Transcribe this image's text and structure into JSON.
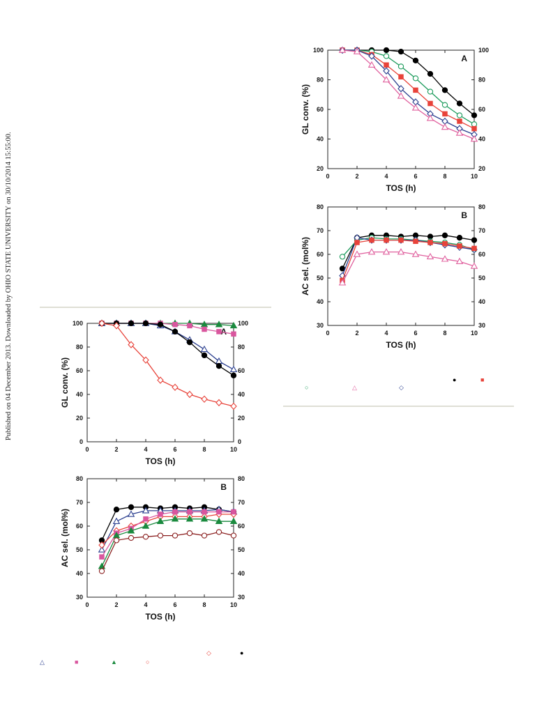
{
  "page": {
    "publisher_note": "Published on 04 December 2013. Downloaded by OHIO STATE UNIVERSITY on 30/10/2014 15:55:00."
  },
  "left_legend": [
    {
      "symbol": "◇",
      "color": "#e8433a"
    },
    {
      "symbol": "●",
      "color": "#000000"
    },
    {
      "symbol": "△",
      "color": "#2b3f8f"
    },
    {
      "symbol": "■",
      "color": "#d9569e"
    },
    {
      "symbol": "▲",
      "color": "#1a8a3e"
    },
    {
      "symbol": "○",
      "color": "#e8433a"
    }
  ],
  "right_legend": [
    {
      "symbol": "●",
      "color": "#000000"
    },
    {
      "symbol": "■",
      "color": "#e8433a"
    },
    {
      "symbol": "○",
      "color": "#1a9a5a"
    },
    {
      "symbol": "△",
      "color": "#e0609e"
    },
    {
      "symbol": "◇",
      "color": "#2b3f8f"
    }
  ],
  "chart_data": [
    {
      "id": "right-A",
      "type": "line",
      "panel_label": "A",
      "xlabel": "TOS (h)",
      "ylabel": "GL conv. (%)",
      "xlim": [
        0,
        10
      ],
      "ylim": [
        20,
        100
      ],
      "xticks": [
        0,
        2,
        4,
        6,
        8,
        10
      ],
      "yticks": [
        20,
        40,
        60,
        80,
        100
      ],
      "grid": false,
      "series": [
        {
          "marker": "circle",
          "filled": true,
          "color": "#000000",
          "x": [
            1,
            2,
            3,
            4,
            5,
            6,
            7,
            8,
            9,
            10
          ],
          "y": [
            100,
            100,
            100,
            100,
            99,
            93,
            84,
            73,
            64,
            56
          ]
        },
        {
          "marker": "circle",
          "filled": false,
          "color": "#1a9a5a",
          "x": [
            1,
            2,
            3,
            4,
            5,
            6,
            7,
            8,
            9,
            10
          ],
          "y": [
            100,
            100,
            99,
            96,
            89,
            81,
            72,
            63,
            56,
            50
          ]
        },
        {
          "marker": "square",
          "filled": true,
          "color": "#e8433a",
          "x": [
            1,
            2,
            3,
            4,
            5,
            6,
            7,
            8,
            9,
            10
          ],
          "y": [
            100,
            100,
            97,
            90,
            82,
            73,
            64,
            57,
            52,
            47
          ]
        },
        {
          "marker": "diamond",
          "filled": false,
          "color": "#2b3f8f",
          "x": [
            1,
            2,
            3,
            4,
            5,
            6,
            7,
            8,
            9,
            10
          ],
          "y": [
            100,
            100,
            96,
            86,
            74,
            65,
            57,
            52,
            47,
            43
          ]
        },
        {
          "marker": "triangle",
          "filled": false,
          "color": "#e0609e",
          "x": [
            1,
            2,
            3,
            4,
            5,
            6,
            7,
            8,
            9,
            10
          ],
          "y": [
            100,
            99,
            90,
            80,
            69,
            61,
            54,
            48,
            44,
            40
          ]
        }
      ]
    },
    {
      "id": "right-B",
      "type": "line",
      "panel_label": "B",
      "xlabel": "TOS (h)",
      "ylabel": "AC sel. (mol%)",
      "xlim": [
        0,
        10
      ],
      "ylim": [
        30,
        80
      ],
      "xticks": [
        0,
        2,
        4,
        6,
        8,
        10
      ],
      "yticks": [
        30,
        40,
        50,
        60,
        70,
        80
      ],
      "grid": false,
      "series": [
        {
          "marker": "circle",
          "filled": true,
          "color": "#000000",
          "x": [
            1,
            2,
            3,
            4,
            5,
            6,
            7,
            8,
            9,
            10
          ],
          "y": [
            54,
            67,
            68,
            68,
            67.5,
            68,
            67.5,
            68,
            67,
            66
          ]
        },
        {
          "marker": "circle",
          "filled": false,
          "color": "#1a9a5a",
          "x": [
            1,
            2,
            3,
            4,
            5,
            6,
            7,
            8,
            9,
            10
          ],
          "y": [
            59,
            66,
            67,
            66.5,
            66.5,
            66,
            65.5,
            65,
            64,
            62
          ]
        },
        {
          "marker": "diamond",
          "filled": false,
          "color": "#2b3f8f",
          "x": [
            1,
            2,
            3,
            4,
            5,
            6,
            7,
            8,
            9,
            10
          ],
          "y": [
            51,
            67,
            66,
            66,
            66,
            66,
            65,
            64,
            63,
            62
          ]
        },
        {
          "marker": "square",
          "filled": true,
          "color": "#e8433a",
          "x": [
            1,
            2,
            3,
            4,
            5,
            6,
            7,
            8,
            9,
            10
          ],
          "y": [
            49,
            65,
            66,
            66,
            66,
            65.5,
            65,
            64.5,
            63.5,
            62.5
          ]
        },
        {
          "marker": "triangle",
          "filled": false,
          "color": "#e0609e",
          "x": [
            1,
            2,
            3,
            4,
            5,
            6,
            7,
            8,
            9,
            10
          ],
          "y": [
            48,
            60,
            61,
            61,
            61,
            60,
            59,
            58,
            57,
            55
          ]
        }
      ]
    },
    {
      "id": "left-A",
      "type": "line",
      "panel_label": "A",
      "xlabel": "TOS (h)",
      "ylabel": "GL conv. (%)",
      "xlim": [
        0,
        10
      ],
      "ylim": [
        0,
        100
      ],
      "xticks": [
        0,
        2,
        4,
        6,
        8,
        10
      ],
      "yticks": [
        0,
        20,
        40,
        60,
        80,
        100
      ],
      "grid": false,
      "series": [
        {
          "marker": "triangle",
          "filled": true,
          "color": "#1a8a3e",
          "x": [
            1,
            2,
            3,
            4,
            5,
            6,
            7,
            8,
            9,
            10
          ],
          "y": [
            100,
            100,
            100,
            100,
            100,
            100,
            100,
            99,
            99,
            98
          ]
        },
        {
          "marker": "square",
          "filled": true,
          "color": "#d9569e",
          "x": [
            1,
            2,
            3,
            4,
            5,
            6,
            7,
            8,
            9,
            10
          ],
          "y": [
            100,
            100,
            100,
            100,
            100,
            99,
            98,
            95,
            93,
            91
          ]
        },
        {
          "marker": "triangle",
          "filled": false,
          "color": "#2b3f8f",
          "x": [
            1,
            2,
            3,
            4,
            5,
            6,
            7,
            8,
            9,
            10
          ],
          "y": [
            100,
            100,
            100,
            100,
            98,
            93,
            86,
            78,
            68,
            61
          ]
        },
        {
          "marker": "circle",
          "filled": true,
          "color": "#000000",
          "x": [
            1,
            2,
            3,
            4,
            5,
            6,
            7,
            8,
            9,
            10
          ],
          "y": [
            100,
            100,
            100,
            100,
            99,
            93,
            84,
            73,
            64,
            56
          ]
        },
        {
          "marker": "diamond",
          "filled": false,
          "color": "#e8433a",
          "x": [
            1,
            2,
            3,
            4,
            5,
            6,
            7,
            8,
            9,
            10
          ],
          "y": [
            100,
            98,
            82,
            69,
            52,
            46,
            40,
            36,
            33,
            30
          ]
        }
      ]
    },
    {
      "id": "left-B",
      "type": "line",
      "panel_label": "B",
      "xlabel": "TOS (h)",
      "ylabel": "AC sel. (mol%)",
      "xlim": [
        0,
        10
      ],
      "ylim": [
        30,
        80
      ],
      "xticks": [
        0,
        2,
        4,
        6,
        8,
        10
      ],
      "yticks": [
        30,
        40,
        50,
        60,
        70,
        80
      ],
      "grid": false,
      "series": [
        {
          "marker": "circle",
          "filled": true,
          "color": "#000000",
          "x": [
            1,
            2,
            3,
            4,
            5,
            6,
            7,
            8,
            9,
            10
          ],
          "y": [
            54,
            67,
            68,
            68,
            67.5,
            68,
            67.5,
            68,
            67,
            66
          ]
        },
        {
          "marker": "triangle",
          "filled": false,
          "color": "#2b3f8f",
          "x": [
            1,
            2,
            3,
            4,
            5,
            6,
            7,
            8,
            9,
            10
          ],
          "y": [
            50,
            62,
            65,
            66.5,
            66.5,
            66.5,
            66.5,
            66.5,
            67,
            66
          ]
        },
        {
          "marker": "diamond",
          "filled": false,
          "color": "#e8433a",
          "x": [
            1,
            2,
            3,
            4,
            5,
            6,
            7,
            8,
            9,
            10
          ],
          "y": [
            52,
            58,
            60,
            62,
            64,
            64,
            64,
            64,
            65,
            65
          ]
        },
        {
          "marker": "square",
          "filled": true,
          "color": "#d9569e",
          "x": [
            1,
            2,
            3,
            4,
            5,
            6,
            7,
            8,
            9,
            10
          ],
          "y": [
            47,
            57,
            59,
            63,
            65,
            66,
            66,
            66,
            66,
            66
          ]
        },
        {
          "marker": "triangle",
          "filled": true,
          "color": "#1a8a3e",
          "x": [
            1,
            2,
            3,
            4,
            5,
            6,
            7,
            8,
            9,
            10
          ],
          "y": [
            43,
            56,
            58,
            60,
            62,
            63,
            63,
            63,
            62,
            62
          ]
        },
        {
          "marker": "circle",
          "filled": false,
          "color": "#8a1e1e",
          "x": [
            1,
            2,
            3,
            4,
            5,
            6,
            7,
            8,
            9,
            10
          ],
          "y": [
            41,
            54,
            55,
            55.5,
            56,
            56,
            57,
            56,
            57.5,
            56
          ]
        }
      ]
    }
  ]
}
